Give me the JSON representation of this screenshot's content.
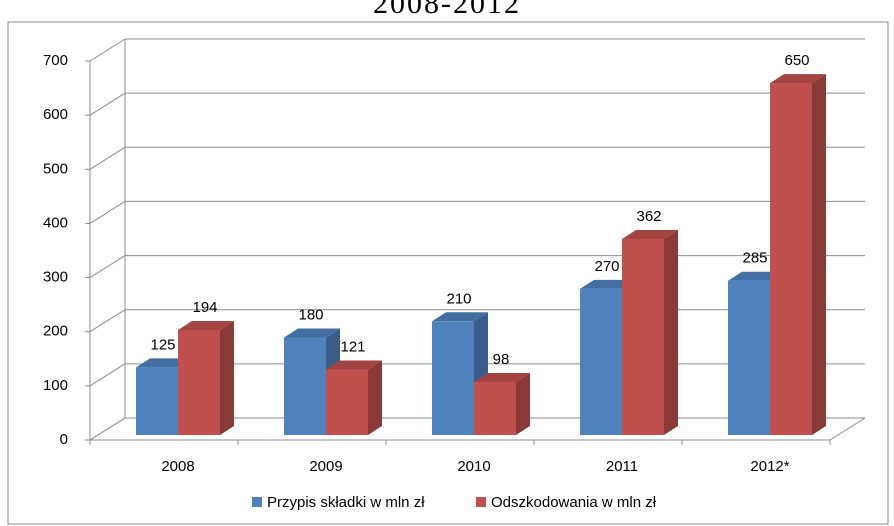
{
  "chart_data": {
    "type": "bar3d",
    "title": "2008-2012",
    "categories": [
      "2008",
      "2009",
      "2010",
      "2011",
      "2012*"
    ],
    "series": [
      {
        "name": "Przypis składki w mln zł",
        "color": "#4f81bd",
        "values": [
          125,
          180,
          210,
          270,
          285
        ]
      },
      {
        "name": "Odszkodowania w mln zł",
        "color": "#c0504d",
        "values": [
          194,
          121,
          98,
          362,
          650
        ]
      }
    ],
    "ylim": [
      0,
      700
    ],
    "yticks": [
      0,
      100,
      200,
      300,
      400,
      500,
      600,
      700
    ],
    "grid": true,
    "legend": "bottom"
  }
}
